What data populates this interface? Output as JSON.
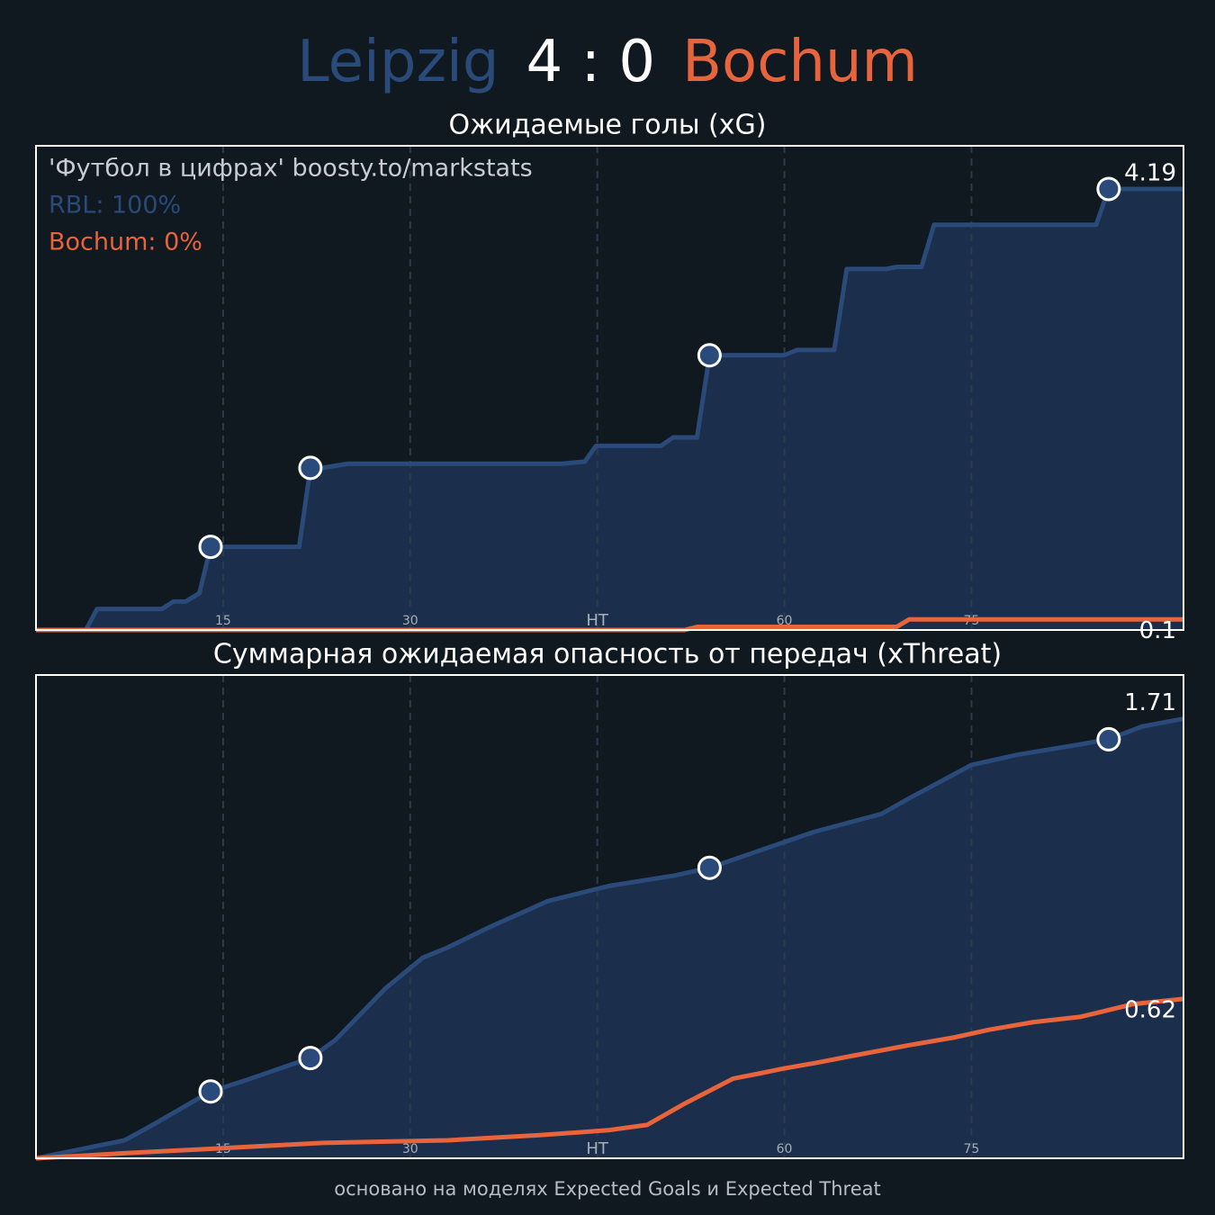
{
  "title": {
    "home": "Leipzig",
    "home_color": "#2a4a7a",
    "score": "4 : 0",
    "away": "Bochum",
    "away_color": "#e8643c"
  },
  "footer": "основано на моделях Expected Goals и Expected Threat",
  "goals": [
    14,
    22,
    54,
    86
  ],
  "chart_data": [
    {
      "type": "line",
      "title": "Ожидаемые голы (xG)",
      "annotations": [
        {
          "text": "'Футбол в цифрах' boosty.to/markstats",
          "color": "#c8ccd2"
        },
        {
          "text": "RBL: 100%",
          "color": "#2a4a7a"
        },
        {
          "text": "Bochum: 0%",
          "color": "#e8643c"
        }
      ],
      "xlim": [
        0,
        92
      ],
      "xticks": [
        15,
        30,
        {
          "value": 45,
          "label": "HT"
        },
        60,
        75
      ],
      "ylim": [
        0,
        4.6
      ],
      "grid": true,
      "fill_color": "#1b2e4b",
      "series": [
        {
          "color": "#2a4a7a",
          "x": [
            0,
            4,
            4.9,
            10.1,
            11,
            12,
            13.1,
            14,
            21.1,
            22,
            23,
            25,
            42.2,
            44,
            44.9,
            50.1,
            51.1,
            53,
            54,
            60,
            61,
            64,
            65,
            68.2,
            69,
            71,
            72,
            85,
            86,
            92
          ],
          "values": [
            0,
            0,
            0.2,
            0.2,
            0.27,
            0.27,
            0.35,
            0.79,
            0.79,
            1.54,
            1.54,
            1.58,
            1.58,
            1.6,
            1.75,
            1.75,
            1.83,
            1.83,
            2.61,
            2.61,
            2.66,
            2.66,
            3.43,
            3.43,
            3.45,
            3.45,
            3.85,
            3.85,
            4.19,
            4.19
          ]
        },
        {
          "color": "#e8643c",
          "x": [
            0,
            52,
            53,
            69,
            70,
            92
          ],
          "values": [
            0,
            0,
            0.03,
            0.03,
            0.1,
            0.1
          ]
        }
      ]
    },
    {
      "type": "line",
      "title": "Суммарная ожидаемая опасность от передач (xThreat)",
      "xlim": [
        0,
        92
      ],
      "xticks": [
        15,
        30,
        {
          "value": 45,
          "label": "HT"
        },
        60,
        75
      ],
      "ylim": [
        0,
        1.88
      ],
      "grid": true,
      "fill_color": "#1b2e4b",
      "series": [
        {
          "color": "#2a4a7a",
          "x": [
            0,
            7.1,
            9,
            14,
            16.6,
            20.2,
            22,
            24,
            28,
            31,
            33,
            36.4,
            41,
            46,
            51.2,
            54,
            57,
            60,
            62.4,
            67.8,
            70,
            75,
            78.7,
            83.7,
            86,
            88.7,
            92
          ],
          "values": [
            0,
            0.07,
            0.12,
            0.26,
            0.3,
            0.36,
            0.39,
            0.46,
            0.66,
            0.78,
            0.82,
            0.9,
            1.0,
            1.06,
            1.1,
            1.13,
            1.18,
            1.23,
            1.27,
            1.34,
            1.4,
            1.53,
            1.57,
            1.61,
            1.63,
            1.68,
            1.71
          ]
        },
        {
          "color": "#e8643c",
          "x": [
            0,
            7.2,
            15.2,
            23,
            33,
            40.4,
            46,
            49,
            51.9,
            55.9,
            58,
            60,
            62.4,
            65.6,
            70,
            73.6,
            76.4,
            80,
            83.7,
            88,
            92
          ],
          "values": [
            0,
            0.02,
            0.04,
            0.06,
            0.07,
            0.09,
            0.11,
            0.13,
            0.21,
            0.31,
            0.33,
            0.35,
            0.37,
            0.4,
            0.44,
            0.47,
            0.5,
            0.53,
            0.55,
            0.6,
            0.62
          ]
        }
      ]
    }
  ]
}
